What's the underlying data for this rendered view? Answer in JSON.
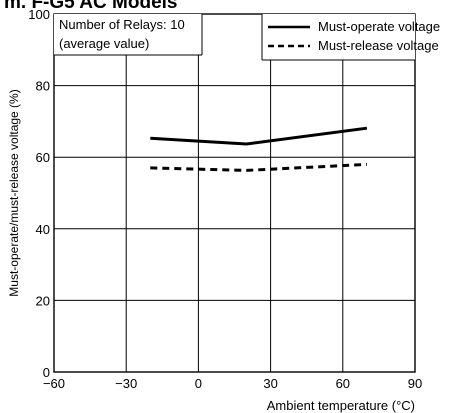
{
  "title": "m. F-G5 AC Models",
  "chart_data": {
    "type": "line",
    "title": "m. F-G5 AC Models",
    "xlabel": "Ambient temperature (°C)",
    "ylabel": "Must-operate/must-release voltage (%)",
    "xlim": [
      -60,
      90
    ],
    "ylim": [
      0,
      100
    ],
    "xticks": [
      -60,
      -30,
      0,
      30,
      60,
      90
    ],
    "xtick_labels": [
      "−60",
      "−30",
      "0",
      "30",
      "60",
      "90"
    ],
    "yticks": [
      0,
      20,
      40,
      60,
      80,
      100
    ],
    "ytick_labels": [
      "0",
      "20",
      "40",
      "60",
      "80",
      "100"
    ],
    "grid": true,
    "legend_position": "top-right",
    "annotation_lines": [
      "Number of Relays: 10",
      "(average value)"
    ],
    "series": [
      {
        "name": "Must-operate voltage",
        "style": "solid",
        "x": [
          -20,
          20,
          70
        ],
        "y": [
          65.3,
          63.7,
          68.1
        ]
      },
      {
        "name": "Must-release voltage",
        "style": "dashed",
        "x": [
          -20,
          20,
          70
        ],
        "y": [
          57.0,
          56.3,
          58.0
        ]
      }
    ]
  }
}
